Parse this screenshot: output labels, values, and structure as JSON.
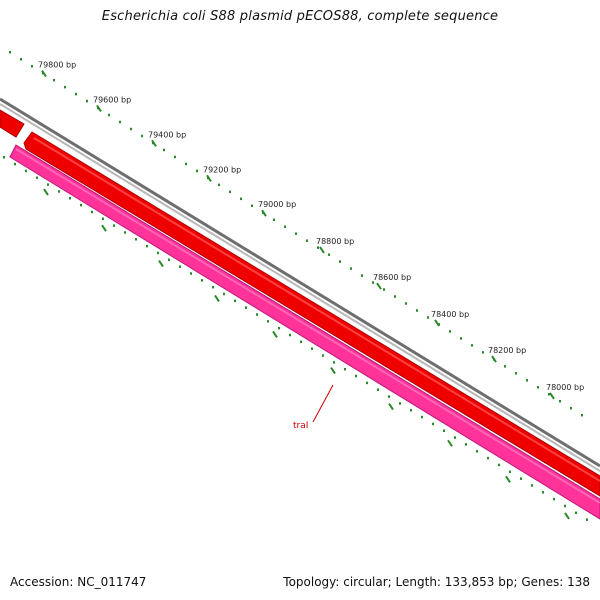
{
  "title": "Escherichia coli S88 plasmid pECOS88, complete sequence",
  "footer": {
    "accession": "Accession: NC_011747",
    "summary": "Topology: circular; Length: 133,853 bp; Genes: 138"
  },
  "colors": {
    "backbone": "#888888",
    "forward_gene": "#ee0000",
    "reverse_gene": "#ff3399",
    "tick": "#2a8a2a",
    "gene_label": "#cc0000"
  },
  "scale_labels": [
    "79800 bp",
    "79600 bp",
    "79400 bp",
    "79200 bp",
    "79000 bp",
    "78800 bp",
    "78600 bp",
    "78400 bp",
    "78200 bp",
    "78000 bp"
  ],
  "genes": [
    {
      "name": "traI",
      "strand": "reverse"
    }
  ]
}
